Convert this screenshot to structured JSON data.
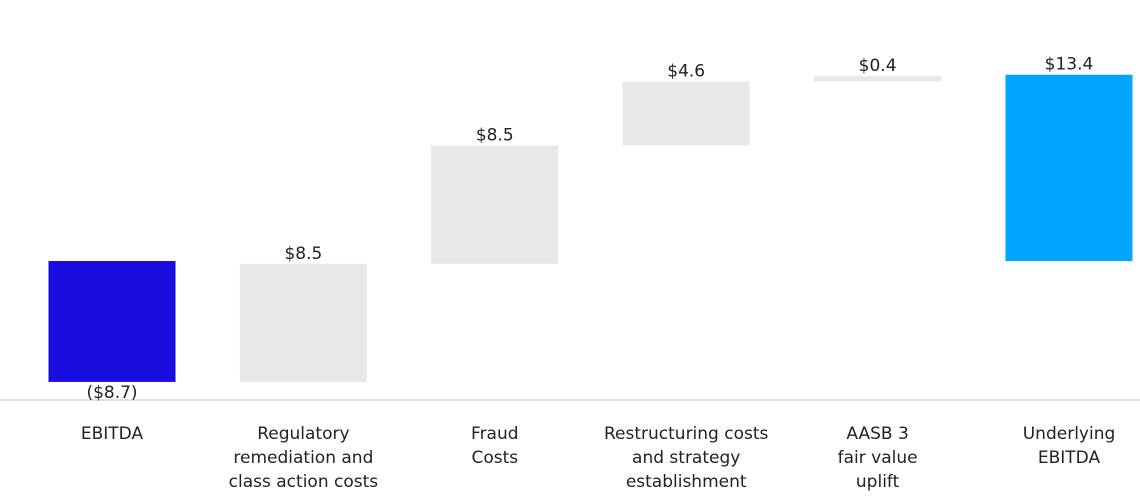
{
  "chart_data": {
    "type": "waterfall",
    "categories": [
      "EBITDA",
      "Regulatory\nremediation and\nclass action costs",
      "Fraud\nCosts",
      "Restructuring costs\nand strategy\nestablishment",
      "AASB 3\nfair value\nuplift",
      "Underlying\nEBITDA"
    ],
    "values": [
      -8.7,
      8.5,
      8.5,
      4.6,
      0.4,
      13.4
    ],
    "value_labels": [
      "($8.7)",
      "$8.5",
      "$8.5",
      "$4.6",
      "$0.4",
      "$13.4"
    ],
    "colors": [
      "#1a0ddf",
      "#e8e8e8",
      "#e8e8e8",
      "#e8e8e8",
      "#e8e8e8",
      "#00a5ff"
    ],
    "ylim": [
      -10,
      15
    ]
  }
}
